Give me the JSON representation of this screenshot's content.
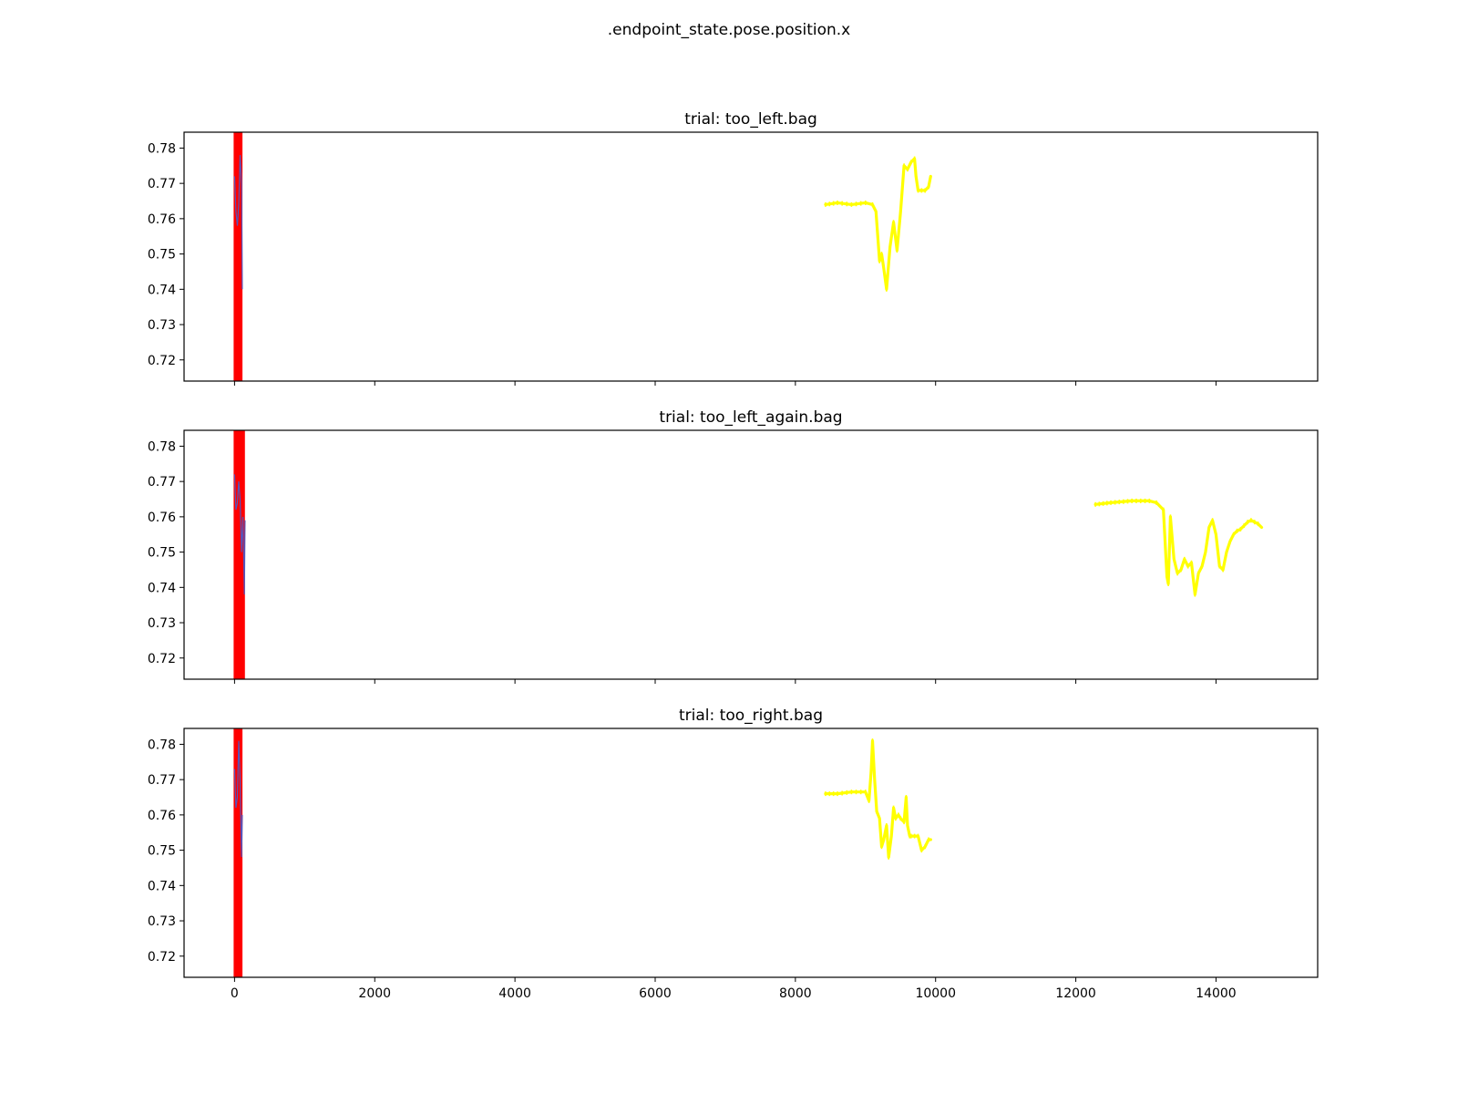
{
  "figure_title": ".endpoint_state.pose.position.x",
  "chart_data": [
    {
      "type": "line",
      "title": "trial: too_left.bag",
      "xlim": [
        -720,
        15450
      ],
      "ylim": [
        0.714,
        0.7845
      ],
      "xticks": [
        0,
        2000,
        4000,
        6000,
        8000,
        10000,
        12000,
        14000
      ],
      "xtick_labels_visible": false,
      "yticks": [
        0.72,
        0.73,
        0.74,
        0.75,
        0.76,
        0.77,
        0.78
      ],
      "ytick_labels": [
        "0.72",
        "0.73",
        "0.74",
        "0.75",
        "0.76",
        "0.77",
        "0.78"
      ],
      "series": [
        {
          "color": "#ffff00",
          "style": "noisy-thick",
          "x": [
            8430,
            8600,
            8800,
            9000,
            9100,
            9150,
            9200,
            9230,
            9260,
            9300,
            9350,
            9400,
            9450,
            9500,
            9550,
            9600,
            9650,
            9700,
            9720,
            9750,
            9800,
            9850,
            9900,
            9930
          ],
          "y": [
            0.764,
            0.7645,
            0.764,
            0.7645,
            0.764,
            0.762,
            0.748,
            0.75,
            0.746,
            0.74,
            0.752,
            0.759,
            0.751,
            0.762,
            0.775,
            0.774,
            0.776,
            0.777,
            0.772,
            0.768,
            0.768,
            0.768,
            0.769,
            0.772
          ]
        },
        {
          "color": "#5555bb",
          "style": "thin",
          "x": [
            0,
            20,
            40,
            60,
            80,
            100,
            110
          ],
          "y": [
            0.772,
            0.762,
            0.758,
            0.764,
            0.778,
            0.77,
            0.74
          ]
        },
        {
          "color": "#ff0000",
          "style": "vertical-band",
          "x": [
            0,
            100
          ]
        }
      ]
    },
    {
      "type": "line",
      "title": "trial: too_left_again.bag",
      "xlim": [
        -720,
        15450
      ],
      "ylim": [
        0.714,
        0.7845
      ],
      "xticks": [
        0,
        2000,
        4000,
        6000,
        8000,
        10000,
        12000,
        14000
      ],
      "xtick_labels_visible": false,
      "yticks": [
        0.72,
        0.73,
        0.74,
        0.75,
        0.76,
        0.77,
        0.78
      ],
      "ytick_labels": [
        "0.72",
        "0.73",
        "0.74",
        "0.75",
        "0.76",
        "0.77",
        "0.78"
      ],
      "series": [
        {
          "color": "#ffff00",
          "style": "noisy-thick",
          "x": [
            12280,
            12500,
            12800,
            13050,
            13150,
            13250,
            13300,
            13320,
            13350,
            13400,
            13450,
            13500,
            13550,
            13600,
            13650,
            13700,
            13750,
            13800,
            13850,
            13900,
            13950,
            14000,
            14050,
            14100,
            14150,
            14200,
            14250,
            14300,
            14350,
            14400,
            14450,
            14500,
            14550,
            14600,
            14650
          ],
          "y": [
            0.7635,
            0.764,
            0.7645,
            0.7645,
            0.764,
            0.762,
            0.743,
            0.741,
            0.76,
            0.748,
            0.744,
            0.745,
            0.748,
            0.746,
            0.747,
            0.738,
            0.744,
            0.746,
            0.75,
            0.757,
            0.759,
            0.755,
            0.746,
            0.745,
            0.75,
            0.753,
            0.755,
            0.756,
            0.7565,
            0.7575,
            0.7585,
            0.759,
            0.7585,
            0.758,
            0.757
          ]
        },
        {
          "color": "#5555bb",
          "style": "thin",
          "x": [
            0,
            20,
            40,
            60,
            80,
            100,
            120,
            140,
            150
          ],
          "y": [
            0.772,
            0.762,
            0.764,
            0.77,
            0.765,
            0.75,
            0.76,
            0.738,
            0.759
          ]
        },
        {
          "color": "#ff0000",
          "style": "vertical-band",
          "x": [
            0,
            135
          ]
        }
      ]
    },
    {
      "type": "line",
      "title": "trial: too_right.bag",
      "xlim": [
        -720,
        15450
      ],
      "ylim": [
        0.714,
        0.7845
      ],
      "xticks": [
        0,
        2000,
        4000,
        6000,
        8000,
        10000,
        12000,
        14000
      ],
      "xtick_labels": [
        "0",
        "2000",
        "4000",
        "6000",
        "8000",
        "10000",
        "12000",
        "14000"
      ],
      "xtick_labels_visible": true,
      "yticks": [
        0.72,
        0.73,
        0.74,
        0.75,
        0.76,
        0.77,
        0.78
      ],
      "ytick_labels": [
        "0.72",
        "0.73",
        "0.74",
        "0.75",
        "0.76",
        "0.77",
        "0.78"
      ],
      "series": [
        {
          "color": "#ffff00",
          "style": "noisy-thick",
          "x": [
            8430,
            8600,
            8800,
            9000,
            9050,
            9080,
            9100,
            9130,
            9160,
            9200,
            9230,
            9260,
            9300,
            9330,
            9370,
            9400,
            9430,
            9470,
            9500,
            9550,
            9580,
            9600,
            9630,
            9650,
            9700,
            9750,
            9800,
            9850,
            9900,
            9930
          ],
          "y": [
            0.766,
            0.766,
            0.7665,
            0.7665,
            0.764,
            0.772,
            0.781,
            0.77,
            0.761,
            0.759,
            0.751,
            0.753,
            0.757,
            0.748,
            0.754,
            0.762,
            0.759,
            0.76,
            0.759,
            0.758,
            0.765,
            0.757,
            0.754,
            0.754,
            0.754,
            0.754,
            0.75,
            0.751,
            0.753,
            0.753
          ]
        },
        {
          "color": "#5555bb",
          "style": "thin",
          "x": [
            0,
            20,
            40,
            60,
            80,
            100,
            110
          ],
          "y": [
            0.773,
            0.762,
            0.765,
            0.781,
            0.77,
            0.748,
            0.76
          ]
        },
        {
          "color": "#ff0000",
          "style": "vertical-band",
          "x": [
            0,
            100
          ]
        }
      ]
    }
  ]
}
